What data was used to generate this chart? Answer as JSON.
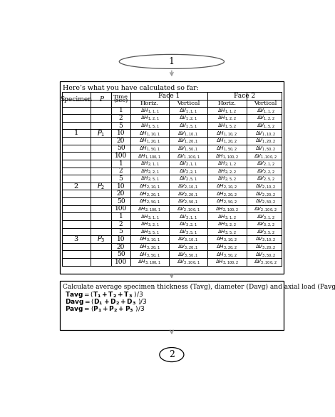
{
  "title_ellipse": "1",
  "box1_header": "Here’s what you have calculated so far:",
  "specimens": [
    "1",
    "2",
    "3"
  ],
  "times": [
    1,
    2,
    5,
    10,
    20,
    50,
    100
  ],
  "box2_title": "Calculate average specimen thickness (Tavg), diameter (Davg) and axial load (Pavg):",
  "box2_line1": "Tavg = ( T",
  "box2_line2": "Davg = ( D",
  "box2_line3": "Pavg = ( P",
  "end_circle": "2",
  "bg_color": "#ffffff",
  "border_color": "#000000",
  "arrow_color": "#999999"
}
